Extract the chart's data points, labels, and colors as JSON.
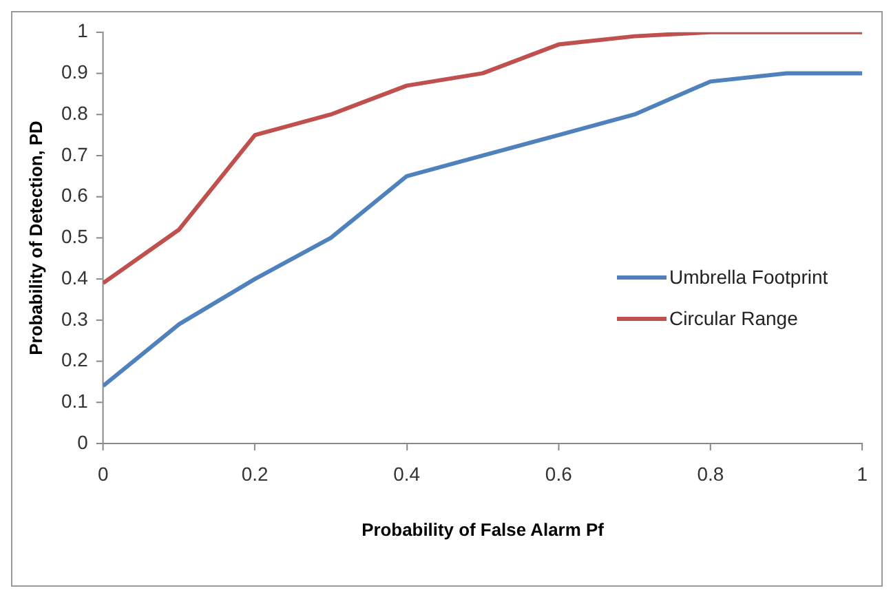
{
  "chart_data": {
    "type": "line",
    "xlabel": "Probability of False Alarm Pf",
    "ylabel": "Probability of Detection, PD",
    "x": [
      0,
      0.1,
      0.2,
      0.3,
      0.4,
      0.5,
      0.6,
      0.7,
      0.8,
      0.9,
      1
    ],
    "series": [
      {
        "name": "Umbrella Footprint",
        "color": "#4f81bd",
        "values": [
          0.14,
          0.29,
          0.4,
          0.5,
          0.65,
          0.7,
          0.75,
          0.8,
          0.88,
          0.9,
          0.9
        ]
      },
      {
        "name": "Circular Range",
        "color": "#c0504d",
        "values": [
          0.39,
          0.52,
          0.75,
          0.8,
          0.87,
          0.9,
          0.97,
          0.99,
          1,
          1,
          1
        ]
      }
    ],
    "xlim": [
      0,
      1
    ],
    "xticks": [
      0,
      0.2,
      0.4,
      0.6,
      0.8,
      1
    ],
    "ylim": [
      0,
      1
    ],
    "yticks": [
      0,
      0.1,
      0.2,
      0.3,
      0.4,
      0.5,
      0.6,
      0.7,
      0.8,
      0.9,
      1
    ],
    "legend": "right",
    "marker": "none",
    "line_style": "solid"
  }
}
